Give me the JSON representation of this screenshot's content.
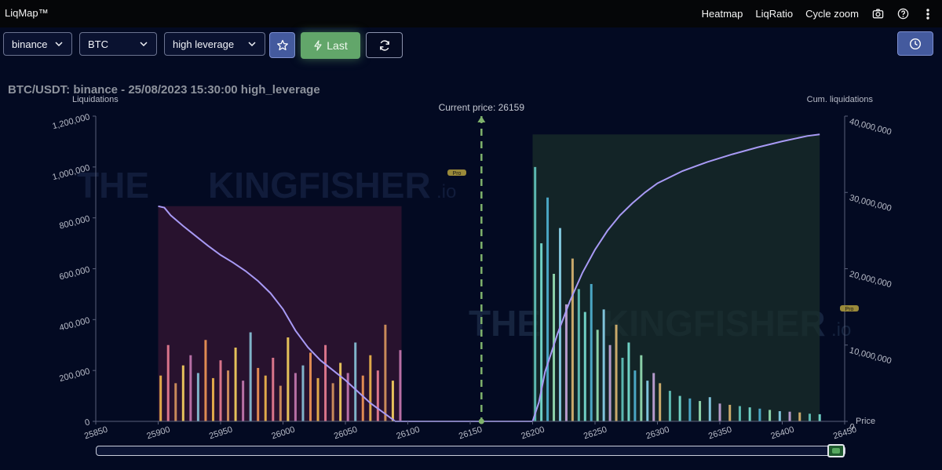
{
  "app": {
    "title": "LiqMap™"
  },
  "nav": {
    "heatmap": "Heatmap",
    "liqratio": "LiqRatio",
    "cycle_zoom": "Cycle zoom"
  },
  "icons": {
    "camera": "camera-icon",
    "help": "help-circle-icon",
    "more": "more-vertical-icon",
    "chevron": "chevron-down-icon",
    "star": "star-icon",
    "bolt": "lightning-icon",
    "refresh": "refresh-icon",
    "clock": "clock-icon"
  },
  "toolbar": {
    "exchange": "binance",
    "symbol": "BTC",
    "leverage": "high leverage",
    "last_label": "Last"
  },
  "chart": {
    "title": "BTC/USDT: binance - 25/08/2023 15:30:00 high_leverage",
    "current_price_label": "Current price: 26159",
    "badge": "Pro",
    "watermark_the": "THE",
    "watermark_name": "KINGFISHER",
    "watermark_io": ".io"
  },
  "colors": {
    "background": "#030a22",
    "cum_line": "#a89af5",
    "short_fill": "#1a2d2a",
    "long_fill": "#2c1330",
    "current_price": "#7fb26c",
    "last_button": "#62a66a",
    "accent_button": "#445a9e",
    "badge": "#9a8a3a"
  },
  "chart_data": {
    "type": "bar",
    "ylabel_left": "Liquidations",
    "ylabel_right": "Cum. liquidations",
    "xlabel": "Price",
    "current_price": 26159,
    "x_range": [
      25850,
      26450
    ],
    "y_left_range": [
      0,
      1200000
    ],
    "y_right_range": [
      0,
      40000000
    ],
    "x_ticks": [
      25850,
      25900,
      25950,
      26000,
      26050,
      26100,
      26150,
      26200,
      26250,
      26300,
      26350,
      26400,
      26450
    ],
    "x_tick_labels": [
      "25850",
      "25900",
      "25950",
      "26000",
      "26050",
      "26100",
      "26150",
      "26200",
      "26250",
      "26300",
      "26350",
      "26400",
      "26450"
    ],
    "y_left_ticks": [
      0,
      200000,
      400000,
      600000,
      800000,
      1000000,
      1200000
    ],
    "y_left_labels": [
      "0",
      "200,000",
      "400,000",
      "600,000",
      "800,000",
      "1,000,000",
      "1,200,000"
    ],
    "y_right_ticks": [
      0,
      10000000,
      20000000,
      30000000,
      40000000
    ],
    "y_right_labels": [
      "0",
      "10,000,000",
      "20,000,000",
      "30,000,000",
      "40,000,000"
    ],
    "cumulative_long": {
      "x": [
        25900,
        25905,
        25910,
        25920,
        25930,
        25940,
        25950,
        25960,
        25970,
        25980,
        25990,
        26000,
        26010,
        26020,
        26030,
        26040,
        26050,
        26060,
        26070,
        26080,
        26090,
        26095
      ],
      "y": [
        28200000,
        28000000,
        27000000,
        25600000,
        24300000,
        23000000,
        21800000,
        20800000,
        19700000,
        18400000,
        16800000,
        14700000,
        11900000,
        9700000,
        8000000,
        6700000,
        5400000,
        3900000,
        2400000,
        1200000,
        0,
        0
      ]
    },
    "cumulative_short": {
      "x": [
        26200,
        26205,
        26210,
        26220,
        26230,
        26240,
        26250,
        26260,
        26270,
        26280,
        26290,
        26300,
        26320,
        26340,
        26360,
        26380,
        26400,
        26420,
        26430
      ],
      "y": [
        0,
        2500000,
        6500000,
        11500000,
        15800000,
        19500000,
        22500000,
        25000000,
        27000000,
        28600000,
        30000000,
        31200000,
        32800000,
        34000000,
        35000000,
        35900000,
        36700000,
        37400000,
        37600000
      ]
    },
    "long_bars": {
      "x": [
        25902,
        25908,
        25914,
        25920,
        25926,
        25932,
        25938,
        25944,
        25950,
        25956,
        25962,
        25968,
        25974,
        25980,
        25986,
        25992,
        25998,
        26004,
        26010,
        26016,
        26022,
        26028,
        26034,
        26040,
        26046,
        26052,
        26058,
        26064,
        26070,
        26076,
        26082,
        26088,
        26094
      ],
      "values": [
        180000,
        300000,
        150000,
        220000,
        260000,
        190000,
        320000,
        170000,
        240000,
        200000,
        290000,
        160000,
        350000,
        210000,
        180000,
        250000,
        140000,
        330000,
        190000,
        220000,
        270000,
        170000,
        300000,
        150000,
        230000,
        190000,
        310000,
        180000,
        260000,
        200000,
        380000,
        160000,
        280000
      ]
    },
    "short_bars": {
      "x": [
        26202,
        26207,
        26212,
        26217,
        26222,
        26227,
        26232,
        26237,
        26242,
        26247,
        26252,
        26257,
        26262,
        26267,
        26272,
        26277,
        26282,
        26287,
        26292,
        26297,
        26302,
        26310,
        26318,
        26326,
        26334,
        26342,
        26350,
        26358,
        26366,
        26374,
        26382,
        26390,
        26398,
        26406,
        26414,
        26422,
        26430
      ],
      "values": [
        1000000,
        700000,
        880000,
        580000,
        760000,
        460000,
        640000,
        520000,
        430000,
        540000,
        360000,
        440000,
        300000,
        380000,
        250000,
        310000,
        200000,
        260000,
        160000,
        190000,
        150000,
        120000,
        100000,
        90000,
        80000,
        95000,
        70000,
        65000,
        60000,
        55000,
        50000,
        45000,
        40000,
        38000,
        35000,
        30000,
        28000
      ]
    }
  }
}
